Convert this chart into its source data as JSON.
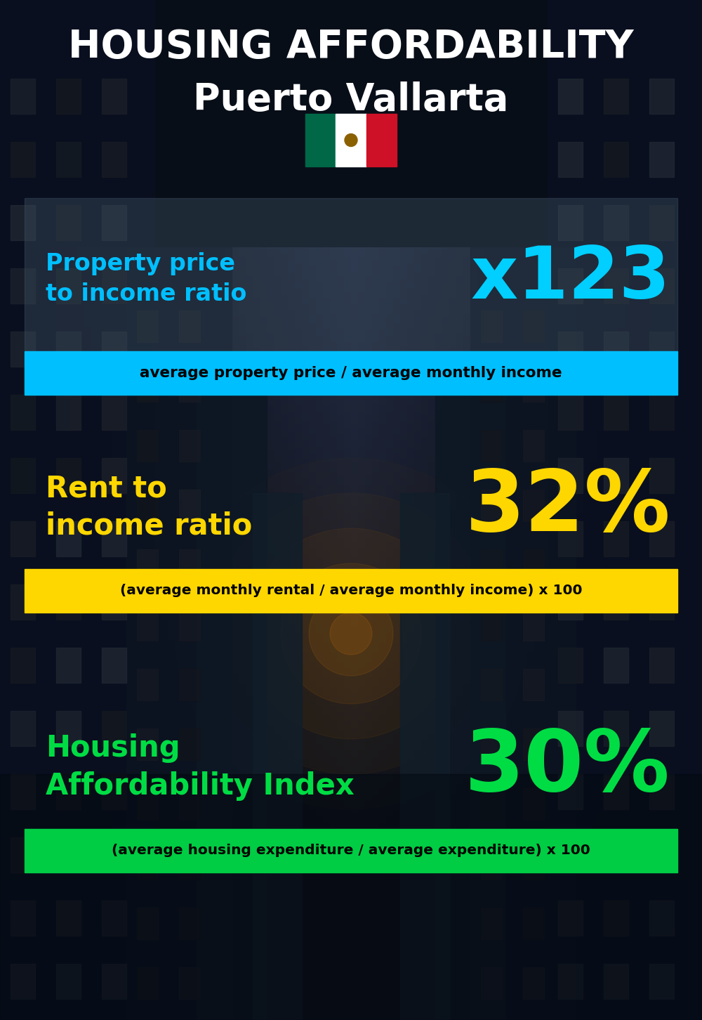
{
  "title_line1": "HOUSING AFFORDABILITY",
  "title_line2": "Puerto Vallarta",
  "bg_color": "#080e18",
  "section1_label": "Property price\nto income ratio",
  "section1_value": "x123",
  "section1_label_color": "#00bfff",
  "section1_value_color": "#00cfff",
  "section1_formula": "average property price / average monthly income",
  "section1_formula_bg": "#00bfff",
  "section2_label": "Rent to\nincome ratio",
  "section2_value": "32%",
  "section2_label_color": "#ffd700",
  "section2_value_color": "#ffd700",
  "section2_formula": "(average monthly rental / average monthly income) x 100",
  "section2_formula_bg": "#ffd700",
  "section3_label": "Housing\nAffordability Index",
  "section3_value": "30%",
  "section3_label_color": "#00dd44",
  "section3_value_color": "#00dd44",
  "section3_formula": "(average housing expenditure / average expenditure) x 100",
  "section3_formula_bg": "#00cc44",
  "flag_green": "#006847",
  "flag_white": "#ffffff",
  "flag_red": "#ce1126"
}
